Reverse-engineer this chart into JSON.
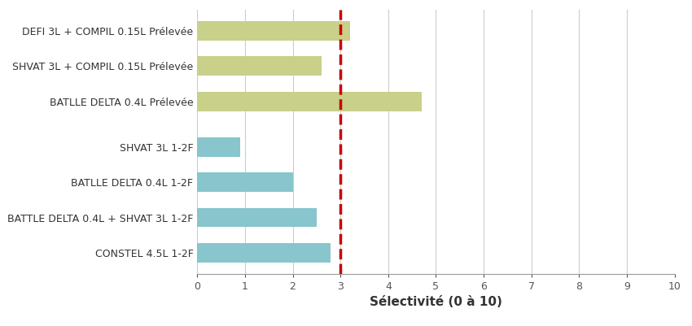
{
  "categories": [
    "CONSTEL 4.5L 1-2F",
    "BATTLE DELTA 0.4L + SHVAT 3L 1-2F",
    "BATLLE DELTA 0.4L 1-2F",
    "SHVAT 3L 1-2F",
    "BATLLE DELTA 0.4L Prélevée",
    "SHVAT 3L + COMPIL 0.15L Prélevée",
    "DEFI 3L + COMPIL 0.15L Prélevée"
  ],
  "values": [
    2.8,
    2.5,
    2.0,
    0.9,
    4.7,
    2.6,
    3.2
  ],
  "colors": [
    "#88c5cc",
    "#88c5cc",
    "#88c5cc",
    "#88c5cc",
    "#c8d08a",
    "#c8d08a",
    "#c8d08a"
  ],
  "y_positions": [
    0,
    1,
    2,
    3,
    4.3,
    5.3,
    6.3
  ],
  "threshold": 3.0,
  "xlabel": "Sélectivité (0 à 10)",
  "xlim": [
    0,
    10
  ],
  "xticks": [
    0,
    1,
    2,
    3,
    4,
    5,
    6,
    7,
    8,
    9,
    10
  ],
  "grid_color": "#cccccc",
  "threshold_color": "#cc0000",
  "bar_height": 0.55,
  "figsize": [
    8.5,
    4.01
  ],
  "dpi": 100,
  "label_fontsize": 9,
  "xlabel_fontsize": 11,
  "ylim_bottom": -0.6,
  "ylim_top": 6.9
}
